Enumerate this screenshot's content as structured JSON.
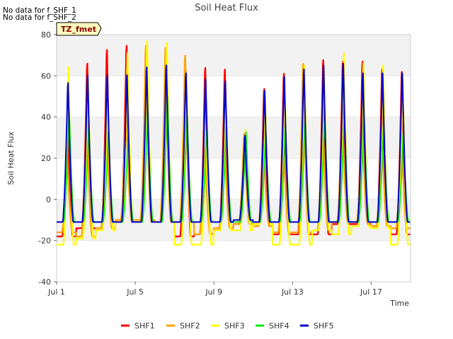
{
  "no_data_notes": [
    "No data for f_SHF_1",
    "No data for f_SHF_2"
  ],
  "chart_data": {
    "type": "line",
    "title": "Soil Heat Flux",
    "xlabel": "Time",
    "ylabel": "Soil Heat Flux",
    "tz_label": "TZ_fmet",
    "ylim": [
      -40,
      80
    ],
    "xlim": [
      "2024-07-01T00:00",
      "2024-07-19T00:00"
    ],
    "yticks": [
      -40,
      -20,
      0,
      20,
      40,
      60,
      80
    ],
    "xticks": [
      {
        "label": "Jul 1",
        "date": "2024-07-01"
      },
      {
        "label": "Jul 5",
        "date": "2024-07-05"
      },
      {
        "label": "Jul 9",
        "date": "2024-07-09"
      },
      {
        "label": "Jul 13",
        "date": "2024-07-13"
      },
      {
        "label": "Jul 17",
        "date": "2024-07-17"
      }
    ],
    "grid": "horizontal bands",
    "legend_position": "bottom",
    "day_timestamps": [
      "2024-07-01",
      "2024-07-02",
      "2024-07-03",
      "2024-07-04",
      "2024-07-05",
      "2024-07-06",
      "2024-07-07",
      "2024-07-08",
      "2024-07-09",
      "2024-07-10",
      "2024-07-11",
      "2024-07-12",
      "2024-07-13",
      "2024-07-14",
      "2024-07-15",
      "2024-07-16",
      "2024-07-17",
      "2024-07-18"
    ],
    "series": [
      {
        "name": "SHF1",
        "color": "#ff0000",
        "peak_hour": 13.3,
        "width": 2.3,
        "daily_max": [
          33,
          70,
          77,
          79,
          79,
          77,
          67,
          68,
          67,
          34,
          57,
          65,
          68,
          72,
          71,
          71,
          67,
          66
        ],
        "daily_min": [
          -18,
          -14,
          -14,
          -11,
          -11,
          -11,
          -18,
          -17,
          -14,
          -12,
          -12,
          -17,
          -17,
          -17,
          -12,
          -12,
          -13,
          -17
        ]
      },
      {
        "name": "SHF2",
        "color": "#ffa500",
        "peak_hour": 12.8,
        "width": 2.3,
        "daily_max": [
          22,
          44,
          45,
          46,
          79,
          78,
          74,
          27,
          30,
          33,
          24,
          31,
          70,
          42,
          42,
          41,
          36,
          33
        ],
        "daily_min": [
          -16,
          -18,
          -14,
          -10,
          -10,
          -11,
          -11,
          -17,
          -14,
          -12,
          -13,
          -16,
          -16,
          -15,
          -11,
          -11,
          -13,
          -14
        ]
      },
      {
        "name": "SHF3",
        "color": "#ffff00",
        "peak_hour": 14.5,
        "width": 2.3,
        "daily_max": [
          64,
          58,
          47,
          71,
          77,
          76,
          61,
          33,
          50,
          34,
          51,
          56,
          65,
          63,
          71,
          66,
          65,
          58
        ],
        "daily_min": [
          -22,
          -19,
          -15,
          -11,
          -11,
          -11,
          -22,
          -22,
          -15,
          -15,
          -12,
          -22,
          -22,
          -15,
          -17,
          -13,
          -14,
          -22
        ]
      },
      {
        "name": "SHF4",
        "color": "#00ee00",
        "peak_hour": 15.2,
        "width": 1.6,
        "daily_max": [
          47,
          37,
          35,
          32,
          46,
          54,
          44,
          36,
          38,
          35,
          35,
          38,
          40,
          41,
          45,
          44,
          39,
          34
        ],
        "daily_min": [
          -11,
          -11,
          -11,
          -11,
          -11,
          -11,
          -11,
          -11,
          -11,
          -11,
          -11,
          -11,
          -11,
          -11,
          -11,
          -11,
          -11,
          -11
        ]
      },
      {
        "name": "SHF5",
        "color": "#0000cc",
        "peak_hour": 13.8,
        "width": 2.0,
        "daily_max": [
          60,
          64,
          64,
          64,
          68,
          69,
          65,
          62,
          61,
          33,
          56,
          63,
          67,
          69,
          70,
          65,
          65,
          65
        ],
        "daily_min": [
          -11,
          -11,
          -11,
          -11,
          -11,
          -11,
          -11,
          -11,
          -11,
          -10,
          -11,
          -11,
          -11,
          -11,
          -11,
          -11,
          -11,
          -11
        ]
      }
    ]
  }
}
